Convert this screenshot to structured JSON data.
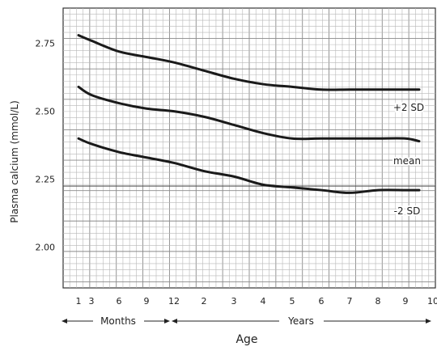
{
  "chart_data": {
    "type": "line",
    "xlabel": "Age",
    "ylabel": "Plasma calcium (mmol/L)",
    "y_ticks": [
      2.0,
      2.25,
      2.5,
      2.75
    ],
    "y_tick_labels": [
      "2.00",
      "2.25",
      "2.50",
      "2.75"
    ],
    "ylim": [
      1.85,
      2.88
    ],
    "x_tick_labels": [
      "1",
      "3",
      "6",
      "9",
      "12",
      "2",
      "3",
      "4",
      "5",
      "6",
      "7",
      "8",
      "9",
      "10"
    ],
    "group_labels": {
      "months": "Months",
      "years": "Years"
    },
    "grid": true,
    "series": [
      {
        "name": "+2 SD",
        "points": [
          {
            "age": "1 mo",
            "value": 2.78
          },
          {
            "age": "3 mo",
            "value": 2.76
          },
          {
            "age": "6 mo",
            "value": 2.72
          },
          {
            "age": "9 mo",
            "value": 2.7
          },
          {
            "age": "12 mo",
            "value": 2.68
          },
          {
            "age": "2 yr",
            "value": 2.65
          },
          {
            "age": "3 yr",
            "value": 2.62
          },
          {
            "age": "4 yr",
            "value": 2.6
          },
          {
            "age": "5 yr",
            "value": 2.59
          },
          {
            "age": "6 yr",
            "value": 2.58
          },
          {
            "age": "7 yr",
            "value": 2.58
          },
          {
            "age": "8 yr",
            "value": 2.58
          },
          {
            "age": "9 yr",
            "value": 2.58
          },
          {
            "age": "9.5 yr",
            "value": 2.58
          }
        ]
      },
      {
        "name": "mean",
        "points": [
          {
            "age": "1 mo",
            "value": 2.59
          },
          {
            "age": "3 mo",
            "value": 2.56
          },
          {
            "age": "6 mo",
            "value": 2.53
          },
          {
            "age": "9 mo",
            "value": 2.51
          },
          {
            "age": "12 mo",
            "value": 2.5
          },
          {
            "age": "2 yr",
            "value": 2.48
          },
          {
            "age": "3 yr",
            "value": 2.45
          },
          {
            "age": "4 yr",
            "value": 2.42
          },
          {
            "age": "5 yr",
            "value": 2.4
          },
          {
            "age": "6 yr",
            "value": 2.4
          },
          {
            "age": "7 yr",
            "value": 2.4
          },
          {
            "age": "8 yr",
            "value": 2.4
          },
          {
            "age": "9 yr",
            "value": 2.4
          },
          {
            "age": "9.5 yr",
            "value": 2.39
          }
        ]
      },
      {
        "name": "-2 SD",
        "points": [
          {
            "age": "1 mo",
            "value": 2.4
          },
          {
            "age": "3 mo",
            "value": 2.38
          },
          {
            "age": "6 mo",
            "value": 2.35
          },
          {
            "age": "9 mo",
            "value": 2.33
          },
          {
            "age": "12 mo",
            "value": 2.31
          },
          {
            "age": "2 yr",
            "value": 2.28
          },
          {
            "age": "3 yr",
            "value": 2.26
          },
          {
            "age": "4 yr",
            "value": 2.23
          },
          {
            "age": "5 yr",
            "value": 2.22
          },
          {
            "age": "6 yr",
            "value": 2.21
          },
          {
            "age": "7 yr",
            "value": 2.2
          },
          {
            "age": "8 yr",
            "value": 2.21
          },
          {
            "age": "9 yr",
            "value": 2.21
          },
          {
            "age": "9.5 yr",
            "value": 2.21
          }
        ]
      }
    ],
    "series_labels": [
      "+2 SD",
      "mean",
      "-2 SD"
    ]
  }
}
